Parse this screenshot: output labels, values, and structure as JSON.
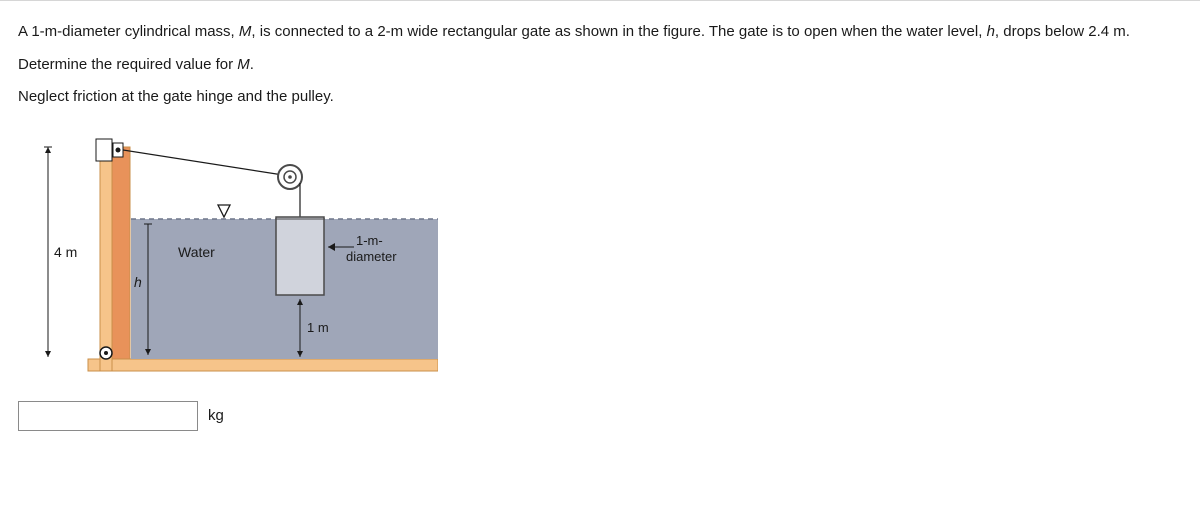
{
  "problem": {
    "p1_a": "A 1-m-diameter cylindrical mass, ",
    "p1_M": "M",
    "p1_b": ", is connected to a 2-m wide rectangular gate as shown in the figure. The gate is to open when the water level, ",
    "p1_h": "h",
    "p1_c": ", drops below 2.4 m.",
    "p2_a": "Determine the required value for ",
    "p2_M": "M",
    "p2_b": ".",
    "p3": "Neglect friction at the gate hinge and the pulley."
  },
  "figure": {
    "label_4m": "4 m",
    "label_water": "Water",
    "label_h": "h",
    "label_1m": "1 m",
    "label_diameter_1": "1-m-",
    "label_diameter_2": "diameter",
    "colors": {
      "water_fill": "#9fa6b8",
      "water_stroke": "#6f768a",
      "wall_fill": "#f6c48a",
      "wall_stroke": "#c98f4a",
      "gate_fill": "#e8925a",
      "floor_fill": "#f6c48a",
      "cylinder_fill": "#d0d3dc",
      "cylinder_stroke": "#4a4a4a",
      "pulley_fill": "#ffffff",
      "pulley_stroke": "#4a4a4a",
      "line": "#1a1a1a"
    }
  },
  "answer": {
    "value": "",
    "unit": "kg"
  }
}
